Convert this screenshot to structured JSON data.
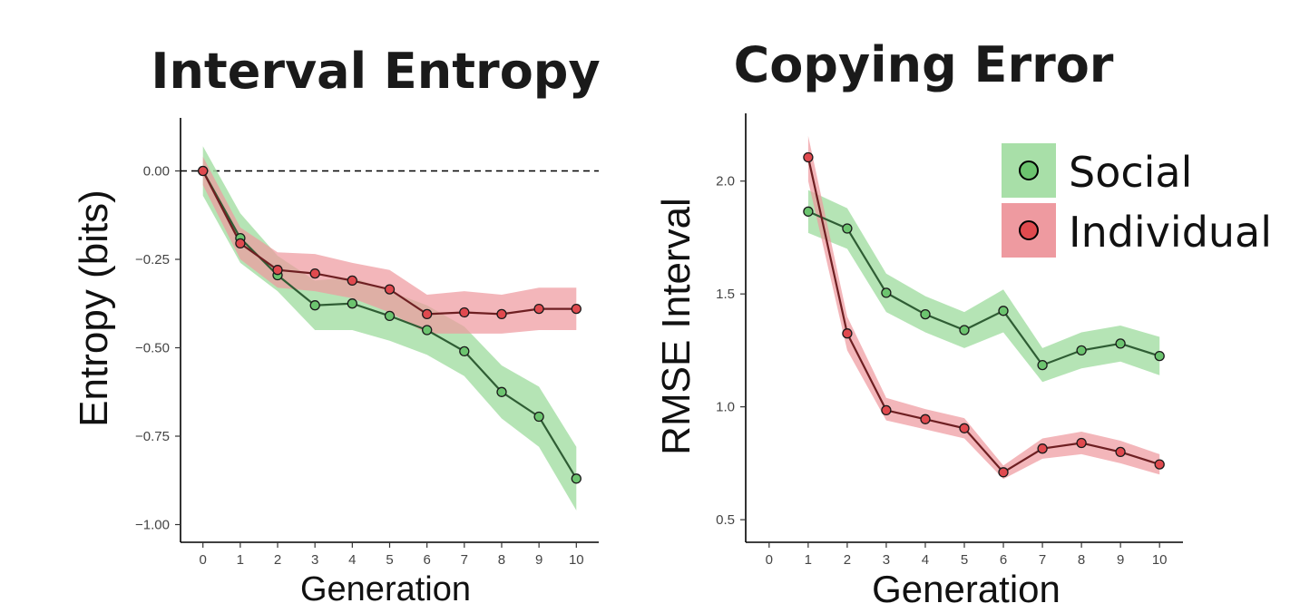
{
  "colors": {
    "social_line": "#2f5d34",
    "social_point": "#6cc46f",
    "social_band": "#a8dfa8",
    "individual_line": "#6e1f22",
    "individual_point": "#e04a4f",
    "individual_band": "#ee9aa0",
    "axis": "#000000"
  },
  "legend": {
    "items": [
      {
        "label": "Social",
        "series": "social"
      },
      {
        "label": "Individual",
        "series": "individual"
      }
    ]
  },
  "chart_data": [
    {
      "type": "line",
      "title": "Interval Entropy",
      "xlabel": "Generation",
      "ylabel": "Entropy (bits)",
      "x": [
        0,
        1,
        2,
        3,
        4,
        5,
        6,
        7,
        8,
        9,
        10
      ],
      "xticks": [
        "0",
        "1",
        "2",
        "3",
        "4",
        "5",
        "6",
        "7",
        "8",
        "9",
        "10"
      ],
      "yticks": [
        0.0,
        -0.25,
        -0.5,
        -0.75,
        -1.0
      ],
      "ytick_labels": [
        "0.00",
        "−0.25",
        "−0.50",
        "−0.75",
        "−1.00"
      ],
      "xlim": [
        -0.6,
        10.6
      ],
      "ylim": [
        -1.05,
        0.15
      ],
      "reference_line": {
        "y": 0.0,
        "style": "dashed"
      },
      "series": [
        {
          "name": "Social",
          "key": "social",
          "x": [
            0,
            1,
            2,
            3,
            4,
            5,
            6,
            7,
            8,
            9,
            10
          ],
          "values": [
            0.0,
            -0.19,
            -0.295,
            -0.38,
            -0.375,
            -0.41,
            -0.45,
            -0.51,
            -0.625,
            -0.695,
            -0.87
          ],
          "lower": [
            -0.07,
            -0.26,
            -0.34,
            -0.45,
            -0.45,
            -0.48,
            -0.52,
            -0.58,
            -0.7,
            -0.78,
            -0.96
          ],
          "upper": [
            0.07,
            -0.12,
            -0.24,
            -0.31,
            -0.3,
            -0.34,
            -0.38,
            -0.44,
            -0.55,
            -0.61,
            -0.78
          ]
        },
        {
          "name": "Individual",
          "key": "individual",
          "x": [
            0,
            1,
            2,
            3,
            4,
            5,
            6,
            7,
            8,
            9,
            10
          ],
          "values": [
            0.0,
            -0.205,
            -0.28,
            -0.29,
            -0.31,
            -0.335,
            -0.405,
            -0.4,
            -0.405,
            -0.39,
            -0.39
          ],
          "lower": [
            -0.04,
            -0.25,
            -0.33,
            -0.34,
            -0.36,
            -0.4,
            -0.46,
            -0.46,
            -0.46,
            -0.45,
            -0.45
          ],
          "upper": [
            0.04,
            -0.16,
            -0.23,
            -0.235,
            -0.26,
            -0.28,
            -0.35,
            -0.34,
            -0.35,
            -0.33,
            -0.33
          ]
        }
      ]
    },
    {
      "type": "line",
      "title": "Copying Error",
      "xlabel": "Generation",
      "ylabel": "RMSE Interval",
      "x": [
        0,
        1,
        2,
        3,
        4,
        5,
        6,
        7,
        8,
        9,
        10
      ],
      "xticks": [
        "0",
        "1",
        "2",
        "3",
        "4",
        "5",
        "6",
        "7",
        "8",
        "9",
        "10"
      ],
      "yticks": [
        0.5,
        1.0,
        1.5,
        2.0
      ],
      "ytick_labels": [
        "0.5",
        "1.0",
        "1.5",
        "2.0"
      ],
      "xlim": [
        -0.6,
        10.6
      ],
      "ylim": [
        0.4,
        2.3
      ],
      "series": [
        {
          "name": "Social",
          "key": "social",
          "x": [
            1,
            2,
            3,
            4,
            5,
            6,
            7,
            8,
            9,
            10
          ],
          "values": [
            1.865,
            1.79,
            1.505,
            1.41,
            1.34,
            1.425,
            1.185,
            1.25,
            1.28,
            1.225
          ],
          "lower": [
            1.77,
            1.7,
            1.42,
            1.33,
            1.26,
            1.33,
            1.11,
            1.17,
            1.2,
            1.14
          ],
          "upper": [
            1.96,
            1.88,
            1.59,
            1.49,
            1.42,
            1.52,
            1.26,
            1.33,
            1.36,
            1.31
          ]
        },
        {
          "name": "Individual",
          "key": "individual",
          "x": [
            1,
            2,
            3,
            4,
            5,
            6,
            7,
            8,
            9,
            10
          ],
          "values": [
            2.105,
            1.325,
            0.985,
            0.945,
            0.905,
            0.71,
            0.815,
            0.84,
            0.8,
            0.745
          ],
          "lower": [
            2.0,
            1.25,
            0.94,
            0.9,
            0.86,
            0.68,
            0.77,
            0.79,
            0.75,
            0.7
          ],
          "upper": [
            2.2,
            1.4,
            1.04,
            0.99,
            0.95,
            0.74,
            0.86,
            0.89,
            0.85,
            0.79
          ]
        }
      ]
    }
  ]
}
